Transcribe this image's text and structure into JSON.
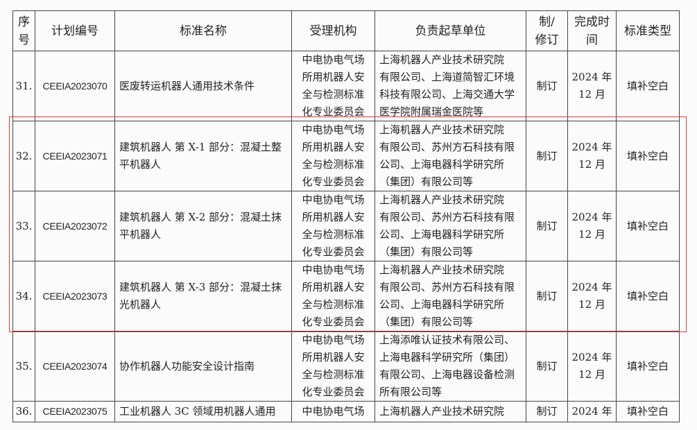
{
  "headers": [
    "序\n号",
    "计划编号",
    "标准名称",
    "受理机构",
    "负责起草单位",
    "制/\n修订",
    "完成时\n间",
    "标准类型"
  ],
  "rows": [
    {
      "no": "31.",
      "code": "CEEIA2023070",
      "name": "医废转运机器人通用技术条件",
      "org": "中电协电气场\n所用机器人安\n全与检测标准\n化专业委员会",
      "drafter": "上海机器人产业技术研究院\n有限公司、上海道简智汇环境\n科技有限公司、上海交通大学\n医学院附属瑞金医院等",
      "type": "制订",
      "time": "2024 年\n12 月",
      "category": "填补空白"
    },
    {
      "no": "32.",
      "code": "CEEIA2023071",
      "name": "建筑机器人 第 X-1 部分：混凝土整\n平机器人",
      "org": "中电协电气场\n所用机器人安\n全与检测标准\n化专业委员会",
      "drafter": "上海机器人产业技术研究院\n有限公司、苏州方石科技有限\n公司、上海电器科学研究所\n（集团）有限公司等",
      "type": "制订",
      "time": "2024 年\n12 月",
      "category": "填补空白"
    },
    {
      "no": "33.",
      "code": "CEEIA2023072",
      "name": "建筑机器人 第 X-2 部分：混凝土抹\n平机器人",
      "org": "中电协电气场\n所用机器人安\n全与检测标准\n化专业委员会",
      "drafter": "上海机器人产业技术研究院\n有限公司、苏州方石科技有限\n公司、上海电器科学研究所\n（集团）有限公司等",
      "type": "制订",
      "time": "2024 年\n12 月",
      "category": "填补空白"
    },
    {
      "no": "34.",
      "code": "CEEIA2023073",
      "name": "建筑机器人 第 X-3 部分：混凝土抹\n光机器人",
      "org": "中电协电气场\n所用机器人安\n全与检测标准\n化专业委员会",
      "drafter": "上海机器人产业技术研究院\n有限公司、苏州方石科技有限\n公司、上海电器科学研究所\n（集团）有限公司等",
      "type": "制订",
      "time": "2024 年\n12 月",
      "category": "填补空白"
    },
    {
      "no": "35.",
      "code": "CEEIA2023074",
      "name": "协作机器人功能安全设计指南",
      "org": "中电协电气场\n所用机器人安\n全与检测标准\n化专业委员会",
      "drafter": "上海添唯认证技术有限公司、\n上海电器科学研究所（集团）\n有限公司、上海电器设备检测\n所有限公司等",
      "type": "制订",
      "time": "2024 年\n12 月",
      "category": "填补空白"
    },
    {
      "no": "36.",
      "code": "CEEIA2023075",
      "name": "工业机器人 3C 领域用机器人通用",
      "org": "中电协电气场",
      "drafter": "上海机器人产业技术研究院",
      "type": "制订",
      "time": "2024 年",
      "category": "填补空白"
    }
  ],
  "highlight_color": "#e23a3a"
}
